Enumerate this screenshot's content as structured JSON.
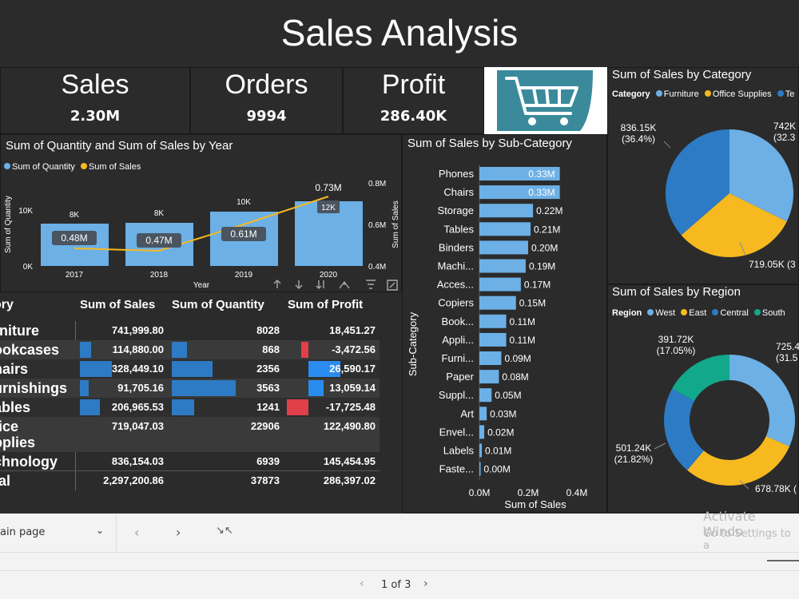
{
  "report_title": "Sales Analysis",
  "kpis": {
    "sales": {
      "label": "Sales",
      "value": "2.30M"
    },
    "orders": {
      "label": "Orders",
      "value": "9994"
    },
    "profit": {
      "label": "Profit",
      "value": "286.40K"
    }
  },
  "year_chart": {
    "title": "Sum of Quantity and Sum of Sales by Year",
    "legend": [
      "Sum of Quantity",
      "Sum of Sales"
    ],
    "y_left_label": "Sum of Quantity",
    "y_right_label": "Sum of Sales",
    "x_label": "Year",
    "y_left_ticks": [
      "10K",
      "0K"
    ],
    "y_right_ticks": [
      "0.8M",
      "0.6M",
      "0.4M"
    ],
    "years": [
      "2017",
      "2018",
      "2019",
      "2020"
    ],
    "quantity_labels": [
      "8K",
      "8K",
      "10K",
      "12K"
    ],
    "sales_labels": [
      "0.48M",
      "0.47M",
      "0.61M",
      "0.73M"
    ]
  },
  "subcat_chart": {
    "title": "Sum of Sales by Sub-Category",
    "y_label": "Sub-Category",
    "x_label": "Sum of Sales",
    "x_ticks": [
      "0.0M",
      "0.2M",
      "0.4M"
    ]
  },
  "category_chart": {
    "title": "Sum of Sales by Category",
    "legend_title": "Category",
    "legend": [
      "Furniture",
      "Office Supplies",
      "Te"
    ],
    "label_a": "836.15K",
    "label_a_pct": "(36.4%)",
    "label_b": "742K",
    "label_b_pct": "(32.3",
    "label_c": "719.05K (3"
  },
  "region_chart": {
    "title": "Sum of Sales by Region",
    "legend_title": "Region",
    "legend": [
      "West",
      "East",
      "Central",
      "South"
    ],
    "label_south": "391.72K",
    "label_south_pct": "(17.05%)",
    "label_west": "725.4",
    "label_west_pct": "(31.5",
    "label_central": "501.24K",
    "label_central_pct": "(21.82%)",
    "label_east": "678.78K ("
  },
  "table": {
    "headers": [
      "ory",
      "Sum of Sales",
      "Sum of Quantity",
      "Sum of Profit"
    ],
    "rows": [
      {
        "cat": "rniture",
        "sales": "741,999.80",
        "qty": "8028",
        "profit": "18,451.27"
      },
      {
        "cat": "ookcases",
        "sales": "114,880.00",
        "qty": "868",
        "profit": "-3,472.56"
      },
      {
        "cat": "hairs",
        "sales": "328,449.10",
        "qty": "2356",
        "profit": "26,590.17"
      },
      {
        "cat": "urnishings",
        "sales": "91,705.16",
        "qty": "3563",
        "profit": "13,059.14"
      },
      {
        "cat": "ables",
        "sales": "206,965.53",
        "qty": "1241",
        "profit": "-17,725.48"
      },
      {
        "cat": "fice",
        "cat2": "pplies",
        "sales": "719,047.03",
        "qty": "22906",
        "profit": "122,490.80"
      },
      {
        "cat": "chnology",
        "sales": "836,154.03",
        "qty": "6939",
        "profit": "145,454.95"
      },
      {
        "cat": "tal",
        "sales": "2,297,200.86",
        "qty": "37873",
        "profit": "286,397.02"
      }
    ]
  },
  "footer": {
    "page_name": "ain page",
    "page_indicator": "1 of 3",
    "watermark_line1": "Activate Windo",
    "watermark_line2": "Go to Settings to a"
  },
  "colors": {
    "light_blue": "#6cb0e6",
    "mid_blue": "#2d7bc4",
    "orange": "#f6b91f",
    "teal": "#12a88b",
    "red": "#e0404a",
    "bright_blue": "#2b8cf0"
  }
}
